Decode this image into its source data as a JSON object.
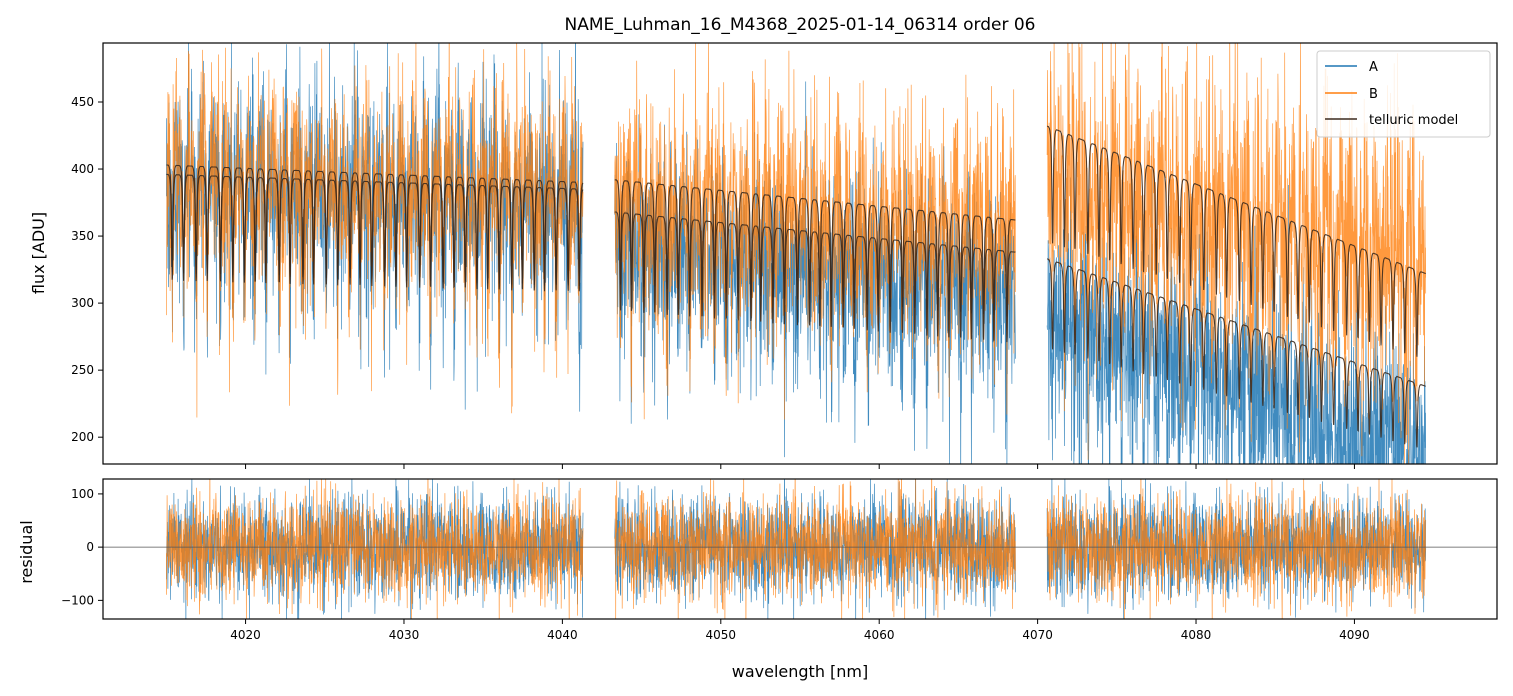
{
  "chart_data": [
    {
      "type": "line",
      "title": "NAME_Luhman_16_M4368_2025-01-14_06314  order 06",
      "xlabel": "",
      "ylabel": "flux [ADU]",
      "xlim": [
        4011,
        4099
      ],
      "ylim": [
        180,
        494
      ],
      "x_ticks": [
        4020,
        4030,
        4040,
        4050,
        4060,
        4070,
        4080,
        4090
      ],
      "y_ticks": [
        200,
        250,
        300,
        350,
        400,
        450
      ],
      "legend": {
        "placement": "top-right",
        "entries": [
          "A",
          "B",
          "telluric model"
        ]
      },
      "segments": [
        {
          "x_range": [
            4015.0,
            4041.3
          ],
          "A_level": 392,
          "B_level": 396,
          "noise_A": 40,
          "noise_B": 40,
          "model_top": [
            403,
            390
          ],
          "model_bottom": [
            396,
            385
          ]
        },
        {
          "x_range": [
            4043.3,
            4068.6
          ],
          "A_level": 345,
          "B_level": 378,
          "noise_A": 38,
          "noise_B": 42,
          "model_top": [
            392,
            362
          ],
          "model_bottom": [
            368,
            338
          ]
        },
        {
          "x_range": [
            4070.6,
            4094.5
          ],
          "A_level": 290,
          "B_level": 395,
          "noise_A": 42,
          "noise_B": 55,
          "model_top": [
            432,
            322
          ],
          "model_bottom": [
            333,
            238
          ]
        }
      ],
      "series": [
        {
          "name": "A",
          "color": "#1f77b4"
        },
        {
          "name": "B",
          "color": "#ff7f0e"
        },
        {
          "name": "telluric model",
          "color": "#3b2a1e"
        }
      ],
      "grid": false
    },
    {
      "type": "line",
      "title": "",
      "xlabel": "wavelength [nm]",
      "ylabel": "residual",
      "xlim": [
        4011,
        4099
      ],
      "ylim": [
        -135,
        128
      ],
      "x_ticks": [
        4020,
        4030,
        4040,
        4050,
        4060,
        4070,
        4080,
        4090
      ],
      "y_ticks": [
        -100,
        0,
        100
      ],
      "zero_line": 0,
      "series": [
        {
          "name": "A",
          "color": "#1f77b4",
          "noise": 48
        },
        {
          "name": "B",
          "color": "#ff7f0e",
          "noise": 48
        }
      ],
      "grid": false
    }
  ]
}
